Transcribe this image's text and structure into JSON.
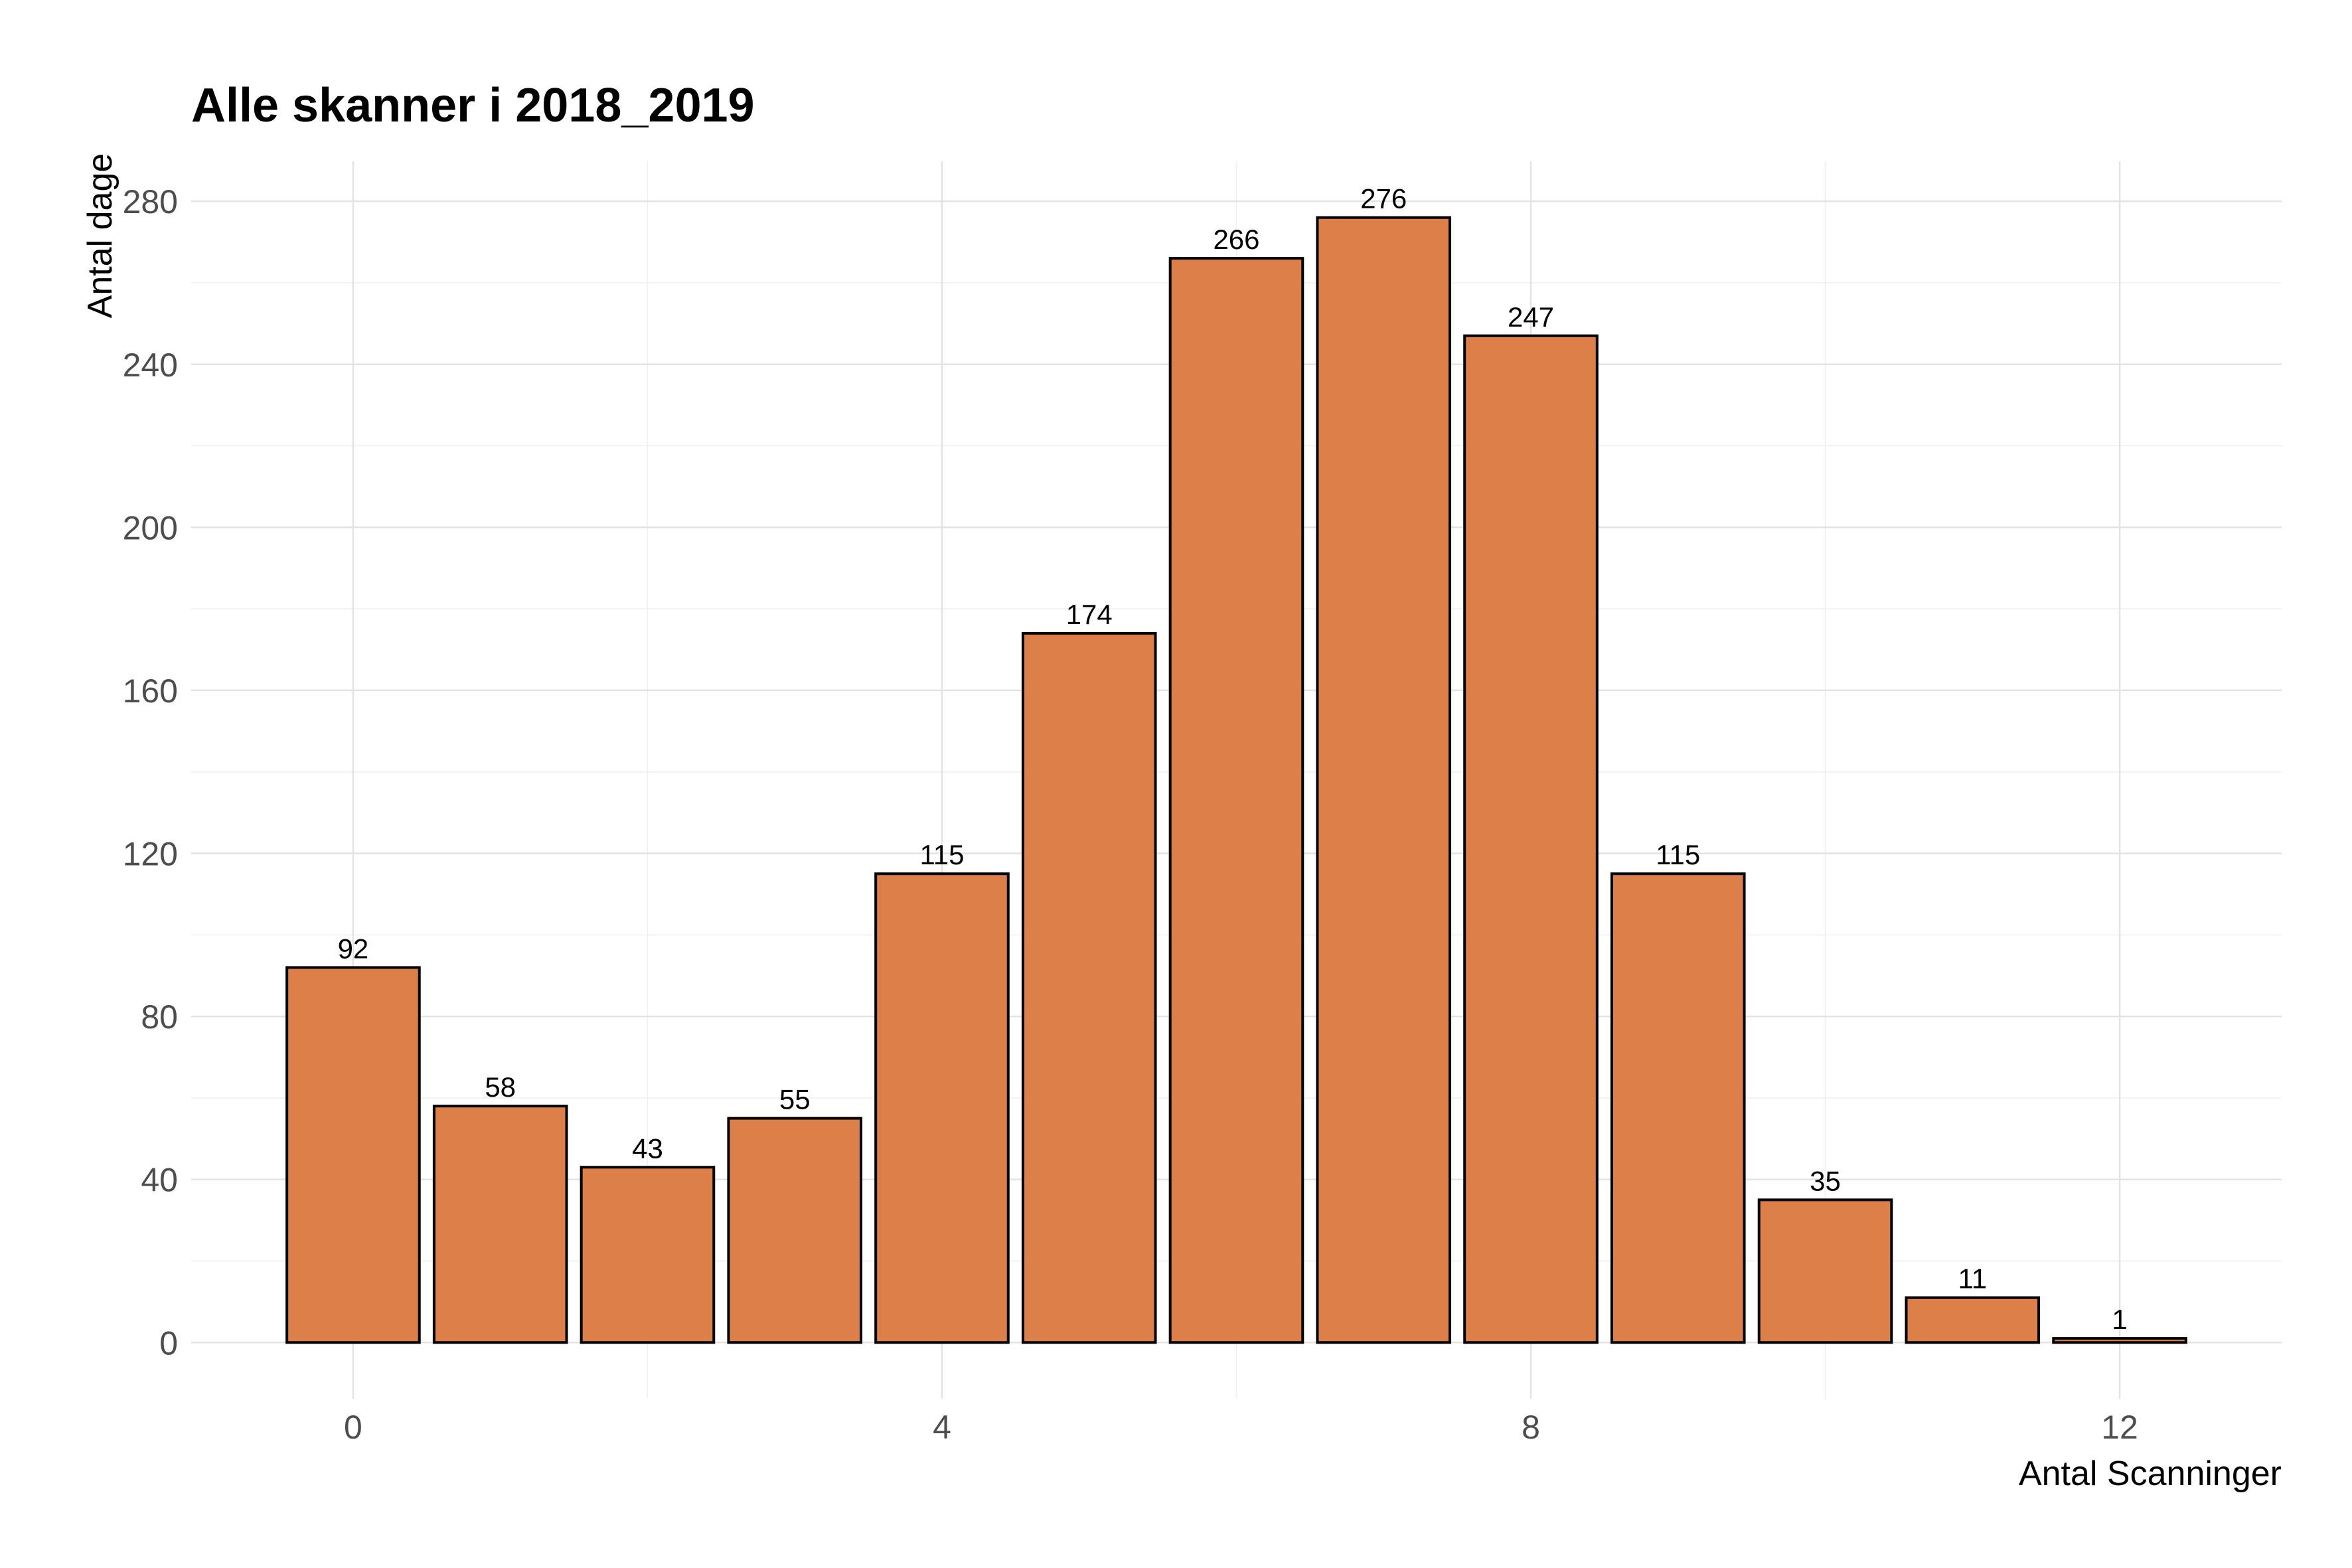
{
  "chart_data": {
    "type": "bar",
    "title": "Alle skanner i 2018_2019",
    "xlabel": "Antal Scanninger",
    "ylabel": "Antal dage",
    "x": [
      0,
      1,
      2,
      3,
      4,
      5,
      6,
      7,
      8,
      9,
      10,
      11,
      12
    ],
    "values": [
      92,
      58,
      43,
      55,
      115,
      174,
      266,
      276,
      247,
      115,
      35,
      11,
      1
    ],
    "data_labels": [
      "92",
      "58",
      "43",
      "55",
      "115",
      "174",
      "266",
      "276",
      "247",
      "115",
      "35",
      "11",
      "1"
    ],
    "xlim": [
      -1.1,
      13.1
    ],
    "ylim": [
      -13.8,
      289.8
    ],
    "x_ticks": [
      0,
      4,
      8,
      12
    ],
    "x_tick_labels": [
      "0",
      "4",
      "8",
      "12"
    ],
    "y_ticks": [
      0,
      40,
      80,
      120,
      160,
      200,
      240,
      280
    ],
    "y_tick_labels": [
      "0",
      "40",
      "80",
      "120",
      "160",
      "200",
      "240",
      "280"
    ],
    "bar_color": "#dd7f48",
    "bar_edge_color": "#000000",
    "grid": true,
    "legend": "none"
  }
}
